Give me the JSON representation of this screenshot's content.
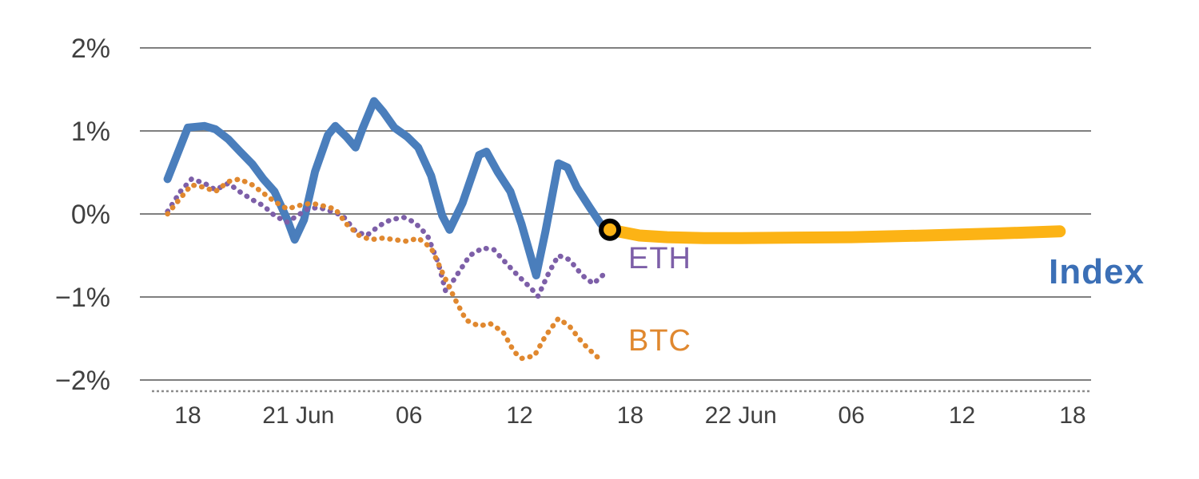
{
  "labels": {
    "index": "Index",
    "eth": "ETH",
    "btc": "BTC"
  },
  "chart_data": {
    "type": "line",
    "title": "",
    "grid": true,
    "colors": {
      "grid": "#7f7f7f",
      "tick_text": "#404040",
      "axis_dashed": "#8c8c8c",
      "index_line": "#4a7ebc",
      "forecast_line": "#fcb315",
      "eth_line": "#7d5fa8",
      "btc_line": "#e0882f",
      "marker_stroke": "#000000",
      "marker_fill": "#fcb315"
    },
    "x_axis": {
      "unit": "hours since 20 Jun 00:00",
      "range": [
        15.4,
        67.0
      ],
      "ticks": [
        18,
        24,
        30,
        36,
        42,
        48,
        54,
        60,
        66
      ],
      "tick_labels": [
        "18",
        "21 Jun",
        "06",
        "12",
        "18",
        "22 Jun",
        "06",
        "12",
        "18"
      ]
    },
    "y_axis": {
      "unit": "percent",
      "range": [
        -2.3,
        2.4
      ],
      "ticks": [
        2,
        1,
        0,
        -1,
        -2
      ],
      "tick_labels": [
        "2%",
        "1%",
        "0%",
        "−1%",
        "−2%"
      ]
    },
    "series": [
      {
        "id": "index",
        "name": "Index",
        "style": "solid",
        "width": 10,
        "color": "#4a7ebc",
        "x": [
          16.9,
          18,
          18.9,
          19.5,
          20.2,
          20.8,
          21.5,
          22.1,
          22.7,
          23.4,
          23.8,
          24.3,
          24.9,
          25.6,
          26.0,
          26.6,
          27.1,
          27.5,
          28.1,
          28.6,
          29.2,
          29.9,
          30.5,
          31.2,
          31.8,
          32.2,
          32.9,
          33.8,
          34.2,
          34.8,
          35.5,
          36.1,
          36.9,
          37.4,
          38.1,
          38.6,
          39.1,
          39.8,
          40.4,
          40.9
        ],
        "y": [
          0.42,
          1.04,
          1.06,
          1.02,
          0.9,
          0.76,
          0.6,
          0.42,
          0.27,
          -0.07,
          -0.31,
          -0.07,
          0.51,
          0.95,
          1.06,
          0.93,
          0.8,
          1.04,
          1.36,
          1.23,
          1.04,
          0.93,
          0.8,
          0.46,
          -0.02,
          -0.19,
          0.13,
          0.71,
          0.75,
          0.51,
          0.27,
          -0.12,
          -0.74,
          -0.21,
          0.61,
          0.56,
          0.32,
          0.08,
          -0.12,
          -0.19
        ]
      },
      {
        "id": "index-forecast",
        "name": "Index forecast",
        "style": "solid",
        "width": 15,
        "color": "#fcb315",
        "x": [
          40.9,
          42.5,
          44,
          46,
          48,
          51,
          54,
          58,
          62,
          65.3
        ],
        "y": [
          -0.19,
          -0.26,
          -0.28,
          -0.29,
          -0.29,
          -0.285,
          -0.28,
          -0.26,
          -0.235,
          -0.21
        ]
      },
      {
        "id": "eth",
        "name": "ETH",
        "style": "dotted",
        "width": 6.5,
        "color": "#7d5fa8",
        "x": [
          16.9,
          17.6,
          18.2,
          18.9,
          19.5,
          20.2,
          20.8,
          21.5,
          22.1,
          22.7,
          23.4,
          23.8,
          24.5,
          25.1,
          25.8,
          26.4,
          27.1,
          27.7,
          28.4,
          29.0,
          29.7,
          30.3,
          31.0,
          31.6,
          32.0,
          32.7,
          33.3,
          34.0,
          34.6,
          35.3,
          35.9,
          36.6,
          37.0,
          37.6,
          38.1,
          38.7,
          39.4,
          40.0,
          40.7
        ],
        "y": [
          0.03,
          0.27,
          0.42,
          0.37,
          0.29,
          0.37,
          0.27,
          0.17,
          0.1,
          -0.02,
          -0.1,
          -0.04,
          0.06,
          0.08,
          0.03,
          -0.02,
          -0.21,
          -0.26,
          -0.14,
          -0.07,
          -0.04,
          -0.1,
          -0.26,
          -0.6,
          -0.94,
          -0.7,
          -0.5,
          -0.41,
          -0.43,
          -0.6,
          -0.74,
          -0.89,
          -0.99,
          -0.7,
          -0.5,
          -0.55,
          -0.74,
          -0.84,
          -0.7
        ]
      },
      {
        "id": "btc",
        "name": "BTC",
        "style": "dotted",
        "width": 6.5,
        "color": "#e0882f",
        "x": [
          16.9,
          17.6,
          18.2,
          18.9,
          19.5,
          20.2,
          20.8,
          21.5,
          22.1,
          22.7,
          23.4,
          24.0,
          24.7,
          25.3,
          26.0,
          26.6,
          27.3,
          27.9,
          28.6,
          29.2,
          29.9,
          30.5,
          31.2,
          31.8,
          32.5,
          33.1,
          33.8,
          34.4,
          35.1,
          35.7,
          36.1,
          36.8,
          37.4,
          38.1,
          38.7,
          39.4,
          40.0,
          40.4
        ],
        "y": [
          0.0,
          0.19,
          0.35,
          0.32,
          0.27,
          0.39,
          0.42,
          0.35,
          0.25,
          0.15,
          0.06,
          0.1,
          0.13,
          0.1,
          0.06,
          -0.12,
          -0.26,
          -0.31,
          -0.29,
          -0.31,
          -0.33,
          -0.29,
          -0.41,
          -0.7,
          -1.03,
          -1.28,
          -1.35,
          -1.32,
          -1.42,
          -1.66,
          -1.74,
          -1.71,
          -1.47,
          -1.26,
          -1.35,
          -1.55,
          -1.68,
          -1.76
        ]
      }
    ],
    "marker": {
      "x": 40.9,
      "y": -0.19,
      "radius": 11,
      "stroke_width": 6
    }
  }
}
